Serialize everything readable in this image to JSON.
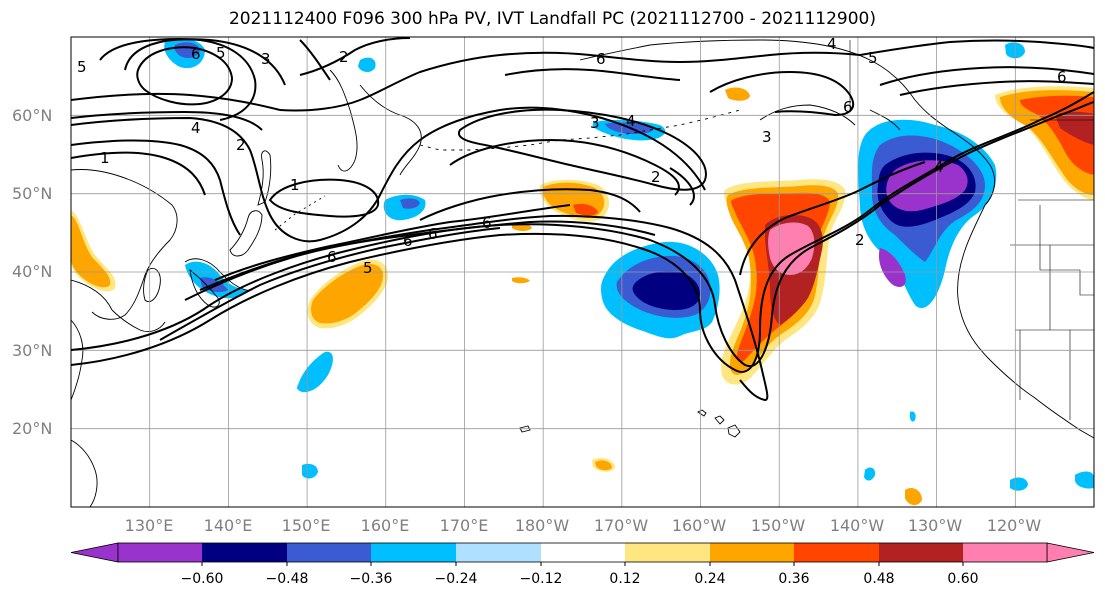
{
  "title": "2021112400 F096 300 hPa PV, IVT Landfall PC (2021112700 - 2021112900)",
  "lat_labels": [
    "60°N",
    "50°N",
    "40°N",
    "30°N",
    "20°N"
  ],
  "lon_labels": [
    "130°E",
    "140°E",
    "150°E",
    "160°E",
    "170°E",
    "180°W",
    "170°W",
    "160°W",
    "150°W",
    "140°W",
    "130°W",
    "120°W"
  ],
  "contour_levels_labeled": [
    "1",
    "2",
    "3",
    "4",
    "5",
    "6"
  ],
  "colorbar": {
    "ticks": [
      "−0.60",
      "−0.48",
      "−0.36",
      "−0.24",
      "−0.12",
      "0.12",
      "0.24",
      "0.36",
      "0.48",
      "0.60"
    ],
    "colors": [
      "#9933cc",
      "#000080",
      "#3a5bd1",
      "#00bfff",
      "#b0e0ff",
      "#ffffff",
      "#ffe680",
      "#ffa500",
      "#ff4500",
      "#b22222",
      "#ff80b0"
    ],
    "extend": "both"
  },
  "map": {
    "projection": "PlateCarree",
    "lon_range": [
      120,
      250
    ],
    "lat_range": [
      10,
      70
    ],
    "grid": true,
    "gridlines_lon": [
      130,
      140,
      150,
      160,
      170,
      180,
      190,
      200,
      210,
      220,
      230,
      240
    ],
    "gridlines_lat": [
      20,
      30,
      40,
      50,
      60
    ]
  },
  "fields": {
    "shaded": "IVT Landfall PC (regression/correlation)",
    "contours": "300 hPa PV (PVU)"
  }
}
